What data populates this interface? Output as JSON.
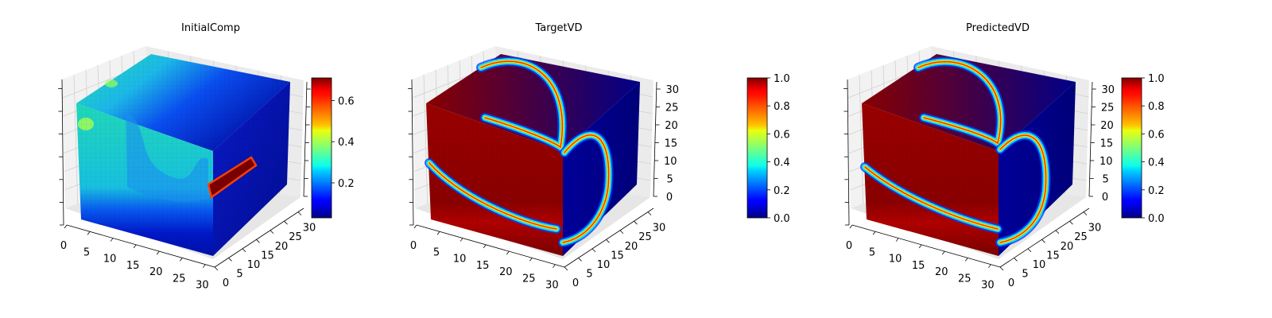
{
  "chart_data": [
    {
      "type": "heatmap",
      "subtype": "3d-voxel-cube",
      "title": "InitialComp",
      "axes": {
        "x": {
          "range": [
            0,
            32
          ],
          "ticks": [
            0,
            5,
            10,
            15,
            20,
            25,
            30
          ]
        },
        "y": {
          "range": [
            0,
            32
          ],
          "ticks": [
            0,
            5,
            10,
            15,
            20,
            25,
            30
          ]
        },
        "z": {
          "range": [
            0,
            32
          ],
          "ticks": [],
          "tick_labels_visible": false
        }
      },
      "colorbar": {
        "colormap": "jet",
        "range": [
          0.03,
          0.71
        ],
        "ticks": [
          0.2,
          0.4,
          0.6
        ],
        "tick_labels": [
          "0.2",
          "0.4",
          "0.6"
        ]
      }
    },
    {
      "type": "heatmap",
      "subtype": "3d-voxel-cube",
      "title": "TargetVD",
      "axes": {
        "x": {
          "range": [
            0,
            32
          ],
          "ticks": [
            0,
            5,
            10,
            15,
            20,
            25,
            30
          ]
        },
        "y": {
          "range": [
            0,
            32
          ],
          "ticks": [
            0,
            5,
            10,
            15,
            20,
            25,
            30
          ]
        },
        "z": {
          "range": [
            0,
            32
          ],
          "ticks": [
            0,
            5,
            10,
            15,
            20,
            25,
            30
          ]
        }
      },
      "colorbar": {
        "colormap": "jet",
        "range": [
          0,
          1
        ],
        "ticks": [
          0,
          0.2,
          0.4,
          0.6,
          0.8,
          1.0
        ],
        "tick_labels": [
          "0.0",
          "0.2",
          "0.4",
          "0.6",
          "0.8",
          "1.0"
        ]
      }
    },
    {
      "type": "heatmap",
      "subtype": "3d-voxel-cube",
      "title": "PredictedVD",
      "axes": {
        "x": {
          "range": [
            0,
            32
          ],
          "ticks": [
            0,
            5,
            10,
            15,
            20,
            25,
            30
          ]
        },
        "y": {
          "range": [
            0,
            32
          ],
          "ticks": [
            0,
            5,
            10,
            15,
            20,
            25,
            30
          ]
        },
        "z": {
          "range": [
            0,
            32
          ],
          "ticks": [
            0,
            5,
            10,
            15,
            20,
            25,
            30
          ]
        }
      },
      "colorbar": {
        "colormap": "jet",
        "range": [
          0,
          1
        ],
        "ticks": [
          0,
          0.2,
          0.4,
          0.6,
          0.8,
          1.0
        ],
        "tick_labels": [
          "0.0",
          "0.2",
          "0.4",
          "0.6",
          "0.8",
          "1.0"
        ]
      }
    }
  ]
}
